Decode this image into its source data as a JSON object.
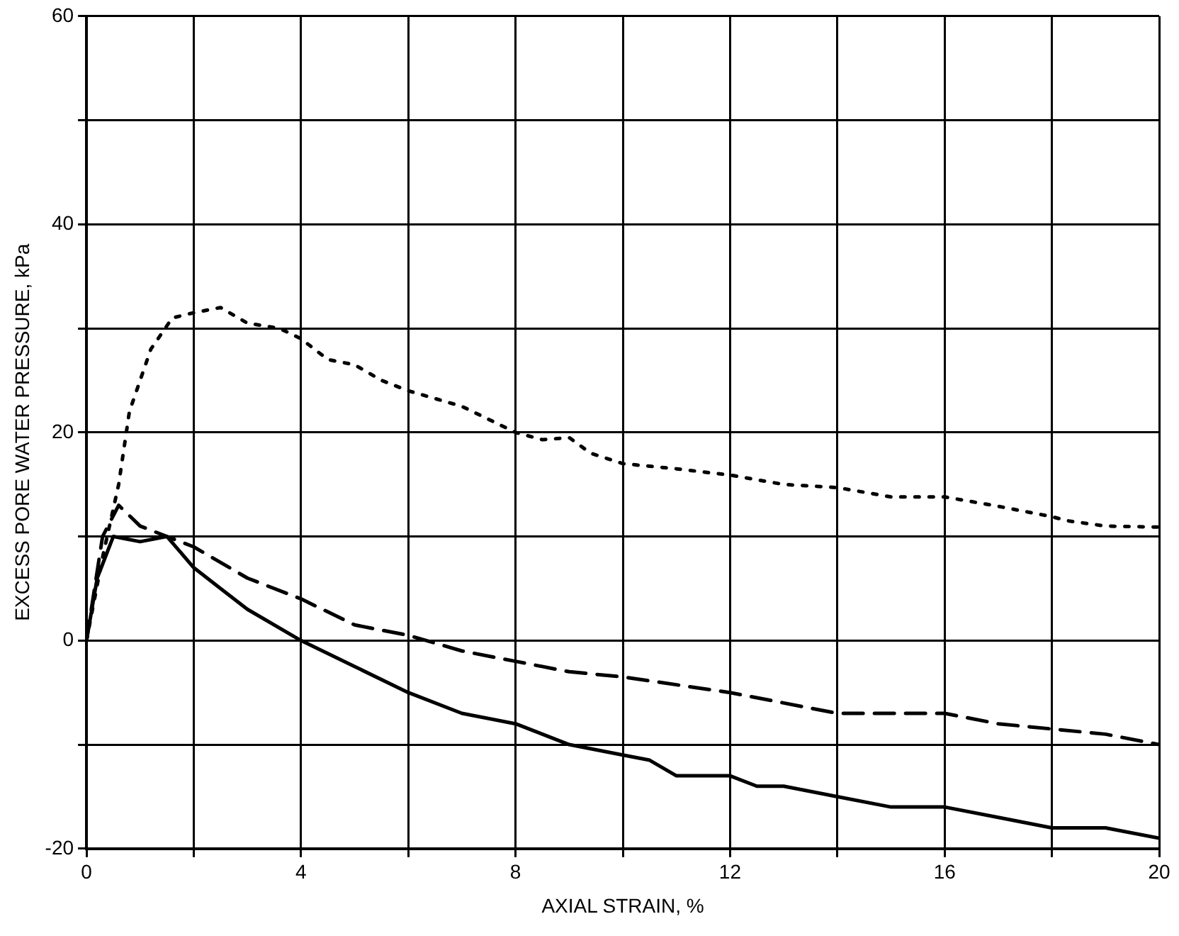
{
  "chart_data": {
    "type": "line",
    "xlabel": "AXIAL STRAIN, %",
    "ylabel": "EXCESS PORE WATER PRESSURE, kPa",
    "xlim": [
      0,
      20
    ],
    "xticks": [
      0,
      {
        "value": 2,
        "label": null
      },
      4,
      {
        "value": 6,
        "label": null
      },
      8,
      {
        "value": 10,
        "label": null
      },
      12,
      {
        "value": 14,
        "label": null
      },
      16,
      {
        "value": 18,
        "label": null
      },
      20
    ],
    "ylim": [
      -20,
      60
    ],
    "yticks": [
      -20,
      {
        "value": -10,
        "label": null
      },
      0,
      {
        "value": 10,
        "label": null
      },
      20,
      {
        "value": 30,
        "label": null
      },
      40,
      {
        "value": 50,
        "label": null
      },
      60
    ],
    "grid": true,
    "marker": "none",
    "series": [
      {
        "color": "#000000",
        "line_style": "dotted",
        "x": [
          0,
          0.3,
          0.6,
          0.8,
          1.2,
          1.6,
          2,
          2.5,
          3,
          3.6,
          4,
          4.5,
          5,
          5.5,
          6,
          7,
          8,
          8.5,
          9,
          9.4,
          10,
          11,
          12,
          13,
          14,
          15,
          16,
          17,
          18,
          18.3,
          19,
          20
        ],
        "values": [
          0,
          8,
          15,
          22,
          28,
          31,
          31.5,
          32,
          30.5,
          30,
          29,
          27,
          26.5,
          25,
          24,
          22.5,
          20,
          19.3,
          19.5,
          18,
          17,
          16.5,
          15.9,
          15,
          14.7,
          13.8,
          13.8,
          12.9,
          11.9,
          11.5,
          11,
          10.9
        ]
      },
      {
        "color": "#000000",
        "line_style": "dashed",
        "x": [
          0,
          0.3,
          0.6,
          1,
          2,
          3,
          4,
          5,
          6,
          7,
          8,
          9,
          10,
          12,
          13,
          14,
          16,
          17,
          18,
          19,
          20
        ],
        "values": [
          0,
          10,
          13,
          11,
          9,
          6,
          4,
          1.5,
          0.5,
          -1,
          -2,
          -3,
          -3.5,
          -5,
          -6,
          -7,
          -7,
          -8,
          -8.5,
          -9,
          -10
        ]
      },
      {
        "color": "#000000",
        "line_style": "solid",
        "x": [
          0,
          0.2,
          0.5,
          1,
          1.5,
          2,
          2.5,
          3,
          4,
          5,
          6,
          7,
          8,
          9,
          10,
          10.5,
          11,
          12,
          12.5,
          13,
          14,
          15,
          16,
          17,
          18,
          19,
          20
        ],
        "values": [
          0,
          6,
          10,
          9.5,
          10,
          7,
          5,
          3,
          0,
          -2.5,
          -5,
          -7,
          -8,
          -10,
          -11,
          -11.5,
          -13,
          -13,
          -14,
          -14,
          -15,
          -16,
          -16,
          -17,
          -18,
          -18,
          -19
        ]
      }
    ]
  }
}
